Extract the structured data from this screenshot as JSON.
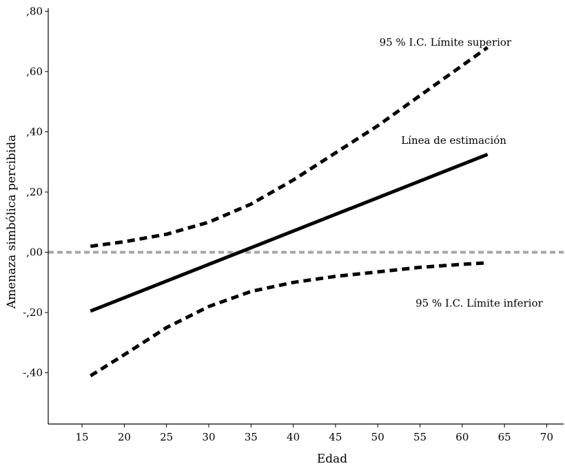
{
  "chart_data": {
    "type": "line",
    "xlabel": "Edad",
    "ylabel": "Amenaza simbólica percibida",
    "xlim": [
      11,
      72
    ],
    "ylim": [
      -0.57,
      0.81
    ],
    "xticks": [
      15,
      20,
      25,
      30,
      35,
      40,
      45,
      50,
      55,
      60,
      65,
      70
    ],
    "xtick_labels": [
      "15",
      "20",
      "25",
      "30",
      "35",
      "40",
      "45",
      "50",
      "55",
      "60",
      "65",
      "70"
    ],
    "yticks": [
      0.8,
      0.6,
      0.4,
      0.2,
      0.0,
      -0.2,
      -0.4
    ],
    "ytick_labels": [
      ",80",
      ",60",
      ",40",
      ",20",
      ",00",
      "-,20",
      "-,40"
    ],
    "grid": false,
    "reference_line": {
      "y": 0.0,
      "style": "dashed",
      "color": "#a6a6a6"
    },
    "series": [
      {
        "label": "95 % I.C. Límite superior",
        "style": "dashed",
        "color": "#000000",
        "x": [
          16,
          20,
          25,
          30,
          35,
          40,
          45,
          50,
          55,
          60,
          63
        ],
        "y": [
          0.02,
          0.035,
          0.06,
          0.1,
          0.16,
          0.24,
          0.33,
          0.42,
          0.52,
          0.62,
          0.68
        ]
      },
      {
        "label": "Línea de estimación",
        "style": "solid",
        "color": "#000000",
        "x": [
          16,
          63
        ],
        "y": [
          -0.195,
          0.325
        ]
      },
      {
        "label": "95 % I.C. Límite inferior",
        "style": "dashed",
        "color": "#000000",
        "x": [
          16,
          20,
          25,
          30,
          35,
          40,
          45,
          50,
          55,
          60,
          63
        ],
        "y": [
          -0.41,
          -0.34,
          -0.25,
          -0.18,
          -0.13,
          -0.1,
          -0.08,
          -0.065,
          -0.05,
          -0.04,
          -0.035
        ]
      }
    ],
    "annotations": [
      {
        "text": "95 % I.C. Límite superior",
        "x": 58,
        "y": 0.685
      },
      {
        "text": "Línea de estimación",
        "x": 59,
        "y": 0.36
      },
      {
        "text": "95 % I.C. Límite inferior",
        "x": 62,
        "y": -0.18
      }
    ]
  }
}
